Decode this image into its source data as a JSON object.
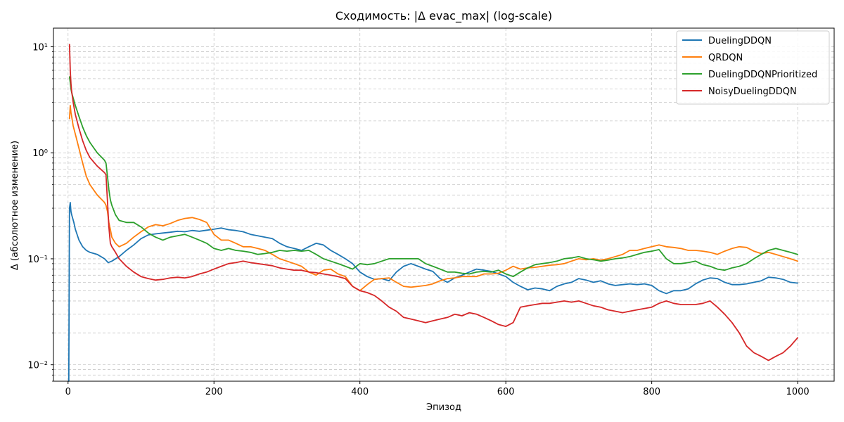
{
  "chart_data": {
    "type": "line",
    "title": "Сходимость: |Δ evac_max| (log-scale)",
    "xlabel": "Эпизод",
    "ylabel": "Δ (абсолютное изменение)",
    "xlim": [
      -20,
      1050
    ],
    "ylim": [
      0.007,
      15
    ],
    "y_scale": "log",
    "x_ticks": [
      0,
      200,
      400,
      600,
      800,
      1000
    ],
    "x_tick_labels": [
      "0",
      "200",
      "400",
      "600",
      "800",
      "1000"
    ],
    "y_ticks": [
      0.01,
      0.1,
      1,
      10
    ],
    "y_tick_labels": [
      "10⁻²",
      "10⁻¹",
      "10⁰",
      "10¹"
    ],
    "grid": true,
    "legend_position": "top-right",
    "series": [
      {
        "name": "DuelingDDQN",
        "color": "#1f77b4",
        "x": [
          1,
          2,
          3,
          4,
          5,
          8,
          10,
          15,
          20,
          25,
          30,
          40,
          50,
          55,
          60,
          70,
          80,
          90,
          100,
          110,
          120,
          130,
          140,
          150,
          160,
          170,
          180,
          190,
          200,
          210,
          220,
          230,
          240,
          250,
          260,
          270,
          280,
          290,
          300,
          310,
          320,
          330,
          340,
          350,
          360,
          370,
          380,
          390,
          400,
          410,
          420,
          430,
          440,
          450,
          460,
          470,
          480,
          490,
          500,
          510,
          520,
          530,
          540,
          550,
          560,
          570,
          580,
          590,
          600,
          610,
          620,
          630,
          640,
          650,
          660,
          670,
          680,
          690,
          700,
          710,
          720,
          730,
          740,
          750,
          760,
          770,
          780,
          790,
          800,
          810,
          820,
          830,
          840,
          850,
          860,
          870,
          880,
          890,
          900,
          910,
          920,
          930,
          940,
          950,
          960,
          970,
          980,
          990,
          1000
        ],
        "y": [
          0.005,
          0.3,
          0.34,
          0.28,
          0.26,
          0.22,
          0.19,
          0.15,
          0.13,
          0.12,
          0.115,
          0.11,
          0.1,
          0.092,
          0.095,
          0.105,
          0.12,
          0.135,
          0.155,
          0.168,
          0.172,
          0.175,
          0.178,
          0.182,
          0.18,
          0.185,
          0.182,
          0.186,
          0.19,
          0.195,
          0.188,
          0.185,
          0.18,
          0.17,
          0.165,
          0.16,
          0.155,
          0.14,
          0.13,
          0.125,
          0.12,
          0.13,
          0.14,
          0.135,
          0.12,
          0.11,
          0.1,
          0.09,
          0.075,
          0.068,
          0.064,
          0.065,
          0.062,
          0.075,
          0.085,
          0.09,
          0.085,
          0.08,
          0.076,
          0.065,
          0.06,
          0.066,
          0.07,
          0.075,
          0.08,
          0.078,
          0.076,
          0.072,
          0.068,
          0.06,
          0.055,
          0.051,
          0.053,
          0.052,
          0.05,
          0.055,
          0.058,
          0.06,
          0.065,
          0.063,
          0.06,
          0.062,
          0.058,
          0.056,
          0.057,
          0.058,
          0.057,
          0.058,
          0.056,
          0.05,
          0.047,
          0.05,
          0.05,
          0.052,
          0.058,
          0.063,
          0.066,
          0.065,
          0.06,
          0.057,
          0.057,
          0.058,
          0.06,
          0.062,
          0.067,
          0.066,
          0.064,
          0.06,
          0.059
        ]
      },
      {
        "name": "QRDQN",
        "color": "#ff7f0e",
        "x": [
          2,
          3,
          4,
          5,
          7,
          10,
          15,
          20,
          25,
          30,
          40,
          50,
          52,
          54,
          56,
          58,
          60,
          65,
          70,
          80,
          90,
          100,
          110,
          120,
          130,
          140,
          150,
          160,
          170,
          180,
          190,
          200,
          210,
          220,
          230,
          240,
          250,
          260,
          270,
          280,
          290,
          300,
          310,
          320,
          330,
          340,
          350,
          360,
          370,
          380,
          390,
          400,
          410,
          420,
          430,
          440,
          450,
          460,
          470,
          480,
          490,
          500,
          510,
          520,
          530,
          540,
          550,
          560,
          570,
          580,
          590,
          600,
          610,
          620,
          630,
          640,
          650,
          660,
          670,
          680,
          690,
          700,
          710,
          720,
          730,
          740,
          750,
          760,
          770,
          780,
          790,
          800,
          810,
          820,
          830,
          840,
          850,
          860,
          870,
          880,
          890,
          900,
          910,
          920,
          930,
          940,
          950,
          960,
          970,
          980,
          990,
          1000
        ],
        "y": [
          2.1,
          2.8,
          2.4,
          2.2,
          1.8,
          1.5,
          1.1,
          0.8,
          0.6,
          0.5,
          0.4,
          0.34,
          0.32,
          0.28,
          0.22,
          0.19,
          0.16,
          0.14,
          0.13,
          0.14,
          0.16,
          0.18,
          0.2,
          0.21,
          0.205,
          0.215,
          0.23,
          0.24,
          0.245,
          0.235,
          0.22,
          0.17,
          0.15,
          0.15,
          0.14,
          0.13,
          0.13,
          0.125,
          0.12,
          0.11,
          0.1,
          0.095,
          0.09,
          0.085,
          0.075,
          0.07,
          0.078,
          0.08,
          0.072,
          0.068,
          0.055,
          0.05,
          0.057,
          0.064,
          0.065,
          0.066,
          0.06,
          0.055,
          0.054,
          0.055,
          0.056,
          0.058,
          0.062,
          0.065,
          0.066,
          0.068,
          0.068,
          0.068,
          0.072,
          0.072,
          0.073,
          0.078,
          0.085,
          0.08,
          0.082,
          0.083,
          0.085,
          0.087,
          0.088,
          0.09,
          0.095,
          0.1,
          0.098,
          0.1,
          0.097,
          0.1,
          0.105,
          0.11,
          0.12,
          0.12,
          0.125,
          0.13,
          0.135,
          0.13,
          0.128,
          0.125,
          0.12,
          0.12,
          0.118,
          0.115,
          0.11,
          0.118,
          0.125,
          0.13,
          0.128,
          0.118,
          0.112,
          0.115,
          0.11,
          0.105,
          0.1,
          0.095
        ]
      },
      {
        "name": "DuelingDDQNPrioritized",
        "color": "#2ca02c",
        "x": [
          2,
          3,
          4,
          5,
          7,
          10,
          15,
          20,
          25,
          30,
          40,
          50,
          52,
          54,
          56,
          58,
          60,
          65,
          70,
          80,
          90,
          100,
          110,
          120,
          130,
          140,
          150,
          160,
          170,
          180,
          190,
          200,
          210,
          220,
          230,
          240,
          250,
          260,
          270,
          280,
          290,
          300,
          310,
          320,
          330,
          340,
          350,
          360,
          370,
          380,
          390,
          400,
          410,
          420,
          430,
          440,
          450,
          460,
          470,
          480,
          490,
          500,
          510,
          520,
          530,
          540,
          550,
          560,
          570,
          580,
          590,
          600,
          610,
          620,
          630,
          640,
          650,
          660,
          670,
          680,
          690,
          700,
          710,
          720,
          730,
          740,
          750,
          760,
          770,
          780,
          790,
          800,
          810,
          820,
          830,
          840,
          850,
          860,
          870,
          880,
          890,
          900,
          910,
          920,
          930,
          940,
          950,
          960,
          970,
          980,
          990,
          1000
        ],
        "y": [
          5.2,
          4.6,
          4.0,
          3.7,
          3.3,
          2.8,
          2.2,
          1.75,
          1.45,
          1.25,
          1.0,
          0.85,
          0.8,
          0.6,
          0.45,
          0.36,
          0.32,
          0.26,
          0.23,
          0.22,
          0.22,
          0.2,
          0.175,
          0.16,
          0.15,
          0.16,
          0.165,
          0.17,
          0.16,
          0.15,
          0.14,
          0.125,
          0.12,
          0.125,
          0.12,
          0.118,
          0.115,
          0.11,
          0.112,
          0.115,
          0.12,
          0.118,
          0.12,
          0.118,
          0.12,
          0.11,
          0.1,
          0.095,
          0.09,
          0.085,
          0.08,
          0.09,
          0.088,
          0.09,
          0.095,
          0.1,
          0.1,
          0.1,
          0.1,
          0.1,
          0.09,
          0.085,
          0.08,
          0.075,
          0.075,
          0.073,
          0.072,
          0.075,
          0.076,
          0.075,
          0.078,
          0.072,
          0.068,
          0.075,
          0.082,
          0.088,
          0.09,
          0.092,
          0.095,
          0.1,
          0.102,
          0.105,
          0.1,
          0.098,
          0.095,
          0.097,
          0.1,
          0.102,
          0.105,
          0.11,
          0.115,
          0.118,
          0.122,
          0.1,
          0.09,
          0.09,
          0.092,
          0.095,
          0.088,
          0.085,
          0.08,
          0.078,
          0.082,
          0.085,
          0.09,
          0.1,
          0.11,
          0.12,
          0.125,
          0.12,
          0.115,
          0.11
        ]
      },
      {
        "name": "NoisyDuelingDDQN",
        "color": "#d62728",
        "x": [
          2,
          3,
          4,
          5,
          7,
          10,
          15,
          20,
          25,
          30,
          40,
          50,
          52,
          54,
          56,
          58,
          60,
          65,
          70,
          80,
          90,
          100,
          110,
          120,
          130,
          140,
          150,
          160,
          170,
          180,
          190,
          200,
          210,
          220,
          230,
          240,
          250,
          260,
          270,
          280,
          290,
          300,
          310,
          320,
          330,
          340,
          350,
          360,
          370,
          380,
          390,
          400,
          410,
          420,
          430,
          440,
          450,
          460,
          470,
          480,
          490,
          500,
          510,
          520,
          530,
          540,
          550,
          560,
          570,
          580,
          590,
          600,
          610,
          620,
          630,
          640,
          650,
          660,
          670,
          680,
          690,
          700,
          710,
          720,
          730,
          740,
          750,
          760,
          770,
          780,
          790,
          800,
          810,
          820,
          830,
          840,
          850,
          860,
          870,
          880,
          890,
          900,
          910,
          920,
          930,
          940,
          950,
          960,
          970,
          980,
          990,
          1000
        ],
        "y": [
          10.5,
          6.0,
          4.5,
          3.8,
          3.0,
          2.3,
          1.7,
          1.3,
          1.05,
          0.9,
          0.75,
          0.65,
          0.62,
          0.35,
          0.2,
          0.14,
          0.13,
          0.115,
          0.1,
          0.085,
          0.075,
          0.068,
          0.065,
          0.063,
          0.064,
          0.066,
          0.067,
          0.066,
          0.068,
          0.072,
          0.075,
          0.08,
          0.085,
          0.09,
          0.092,
          0.095,
          0.092,
          0.09,
          0.088,
          0.086,
          0.082,
          0.08,
          0.078,
          0.078,
          0.075,
          0.074,
          0.072,
          0.07,
          0.068,
          0.065,
          0.055,
          0.05,
          0.048,
          0.045,
          0.04,
          0.035,
          0.032,
          0.028,
          0.027,
          0.026,
          0.025,
          0.026,
          0.027,
          0.028,
          0.03,
          0.029,
          0.031,
          0.03,
          0.028,
          0.026,
          0.024,
          0.023,
          0.025,
          0.035,
          0.036,
          0.037,
          0.038,
          0.038,
          0.039,
          0.04,
          0.039,
          0.04,
          0.038,
          0.036,
          0.035,
          0.033,
          0.032,
          0.031,
          0.032,
          0.033,
          0.034,
          0.035,
          0.038,
          0.04,
          0.038,
          0.037,
          0.037,
          0.037,
          0.038,
          0.04,
          0.035,
          0.03,
          0.025,
          0.02,
          0.015,
          0.013,
          0.012,
          0.011,
          0.012,
          0.013,
          0.015,
          0.018
        ]
      }
    ]
  }
}
